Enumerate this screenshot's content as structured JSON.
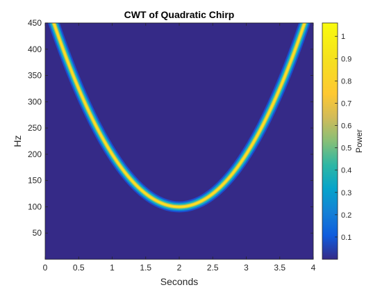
{
  "chart_data": {
    "type": "heatmap",
    "title": "CWT of Quadratic Chirp",
    "xlabel": "Seconds",
    "ylabel": "Hz",
    "xlim": [
      0,
      4
    ],
    "ylim": [
      0,
      450
    ],
    "xticks": [
      0,
      0.5,
      1,
      1.5,
      2,
      2.5,
      3,
      3.5,
      4
    ],
    "xtick_labels": [
      "0",
      "0.5",
      "1",
      "1.5",
      "2",
      "2.5",
      "3",
      "3.5",
      "4"
    ],
    "yticks": [
      50,
      100,
      150,
      200,
      250,
      300,
      350,
      400,
      450
    ],
    "ytick_labels": [
      "50",
      "100",
      "150",
      "200",
      "250",
      "300",
      "350",
      "400",
      "450"
    ],
    "colormap": "parula",
    "colorbar": {
      "label": "Power",
      "range": [
        0,
        1.06
      ],
      "ticks": [
        0.1,
        0.2,
        0.3,
        0.4,
        0.5,
        0.6,
        0.7,
        0.8,
        0.9,
        1
      ],
      "tick_labels": [
        "0.1",
        "0.2",
        "0.3",
        "0.4",
        "0.5",
        "0.6",
        "0.7",
        "0.8",
        "0.9",
        "1"
      ]
    },
    "ridge": {
      "description": "quadratic chirp ridge",
      "points": [
        {
          "x": 0,
          "y": 500
        },
        {
          "x": 0.5,
          "y": 325
        },
        {
          "x": 1,
          "y": 200
        },
        {
          "x": 1.5,
          "y": 125
        },
        {
          "x": 2,
          "y": 100
        },
        {
          "x": 2.5,
          "y": 125
        },
        {
          "x": 3,
          "y": 200
        },
        {
          "x": 3.5,
          "y": 325
        },
        {
          "x": 4,
          "y": 500
        }
      ],
      "peak_power": 1.06
    },
    "background_power": 0
  }
}
